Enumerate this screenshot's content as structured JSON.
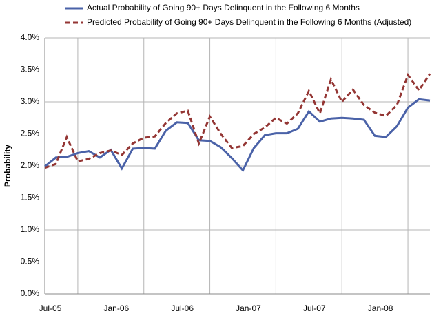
{
  "chart_data": {
    "type": "line",
    "y_label": "Probability",
    "categories": [
      "Jul-05",
      null,
      null,
      null,
      null,
      null,
      "Jan-06",
      null,
      null,
      null,
      null,
      null,
      "Jul-06",
      null,
      null,
      null,
      null,
      null,
      "Jan-07",
      null,
      null,
      null,
      null,
      null,
      "Jul-07",
      null,
      null,
      null,
      null,
      null,
      "Jan-08",
      null,
      null,
      null,
      null,
      null
    ],
    "series": [
      {
        "name": "Actual Probability of Going 90+ Days Delinquent in the Following 6 Months",
        "color": "#4a62a8",
        "dashed": false,
        "values": [
          1.99,
          2.13,
          2.14,
          2.2,
          2.23,
          2.13,
          2.25,
          1.96,
          2.27,
          2.28,
          2.27,
          2.55,
          2.68,
          2.67,
          2.4,
          2.39,
          2.29,
          2.12,
          1.93,
          2.28,
          2.48,
          2.51,
          2.51,
          2.58,
          2.85,
          2.69,
          2.74,
          2.75,
          2.74,
          2.72,
          2.47,
          2.45,
          2.62,
          2.91,
          3.04,
          3.02
        ]
      },
      {
        "name": "Predicted Probability of Going 90+ Days Delinquent in the Following 6 Months (Adjusted)",
        "color": "#943634",
        "dashed": true,
        "values": [
          1.97,
          2.03,
          2.45,
          2.07,
          2.11,
          2.2,
          2.24,
          2.17,
          2.35,
          2.44,
          2.46,
          2.67,
          2.82,
          2.86,
          2.35,
          2.77,
          2.5,
          2.28,
          2.31,
          2.5,
          2.6,
          2.75,
          2.66,
          2.82,
          3.17,
          2.82,
          3.35,
          3.0,
          3.19,
          2.95,
          2.83,
          2.78,
          2.95,
          3.42,
          3.18,
          3.44
        ]
      }
    ],
    "ylim": [
      0,
      4.0
    ],
    "yticks": [
      {
        "value": 0,
        "label": "0.0%"
      },
      {
        "value": 0.5,
        "label": "0.5%"
      },
      {
        "value": 1.0,
        "label": "1.0%"
      },
      {
        "value": 1.5,
        "label": "1.5%"
      },
      {
        "value": 2.0,
        "label": "2.0%"
      },
      {
        "value": 2.5,
        "label": "2.5%"
      },
      {
        "value": 3.0,
        "label": "3.0%"
      },
      {
        "value": 3.5,
        "label": "3.5%"
      },
      {
        "value": 4.0,
        "label": "4.0%"
      }
    ],
    "grid": true
  }
}
